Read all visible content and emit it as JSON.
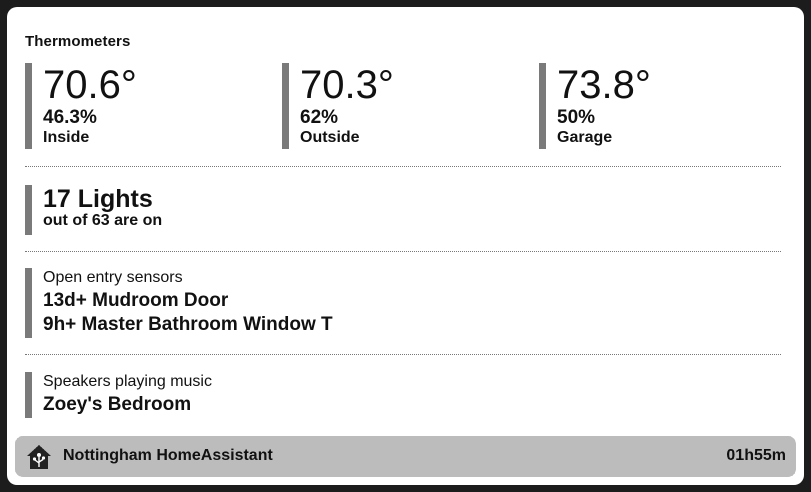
{
  "thermometers": {
    "title": "Thermometers",
    "items": [
      {
        "temperature": "70.6°",
        "humidity": "46.3%",
        "name": "Inside"
      },
      {
        "temperature": "70.3°",
        "humidity": "62%",
        "name": "Outside"
      },
      {
        "temperature": "73.8°",
        "humidity": "50%",
        "name": "Garage"
      }
    ]
  },
  "lights": {
    "count_label": "17 Lights",
    "subtitle": "out of 63 are on"
  },
  "entry_sensors": {
    "label": "Open entry sensors",
    "items": [
      "13d+ Mudroom Door",
      "9h+ Master Bathroom Window T"
    ]
  },
  "speakers": {
    "label": "Speakers playing music",
    "items": [
      "Zoey's Bedroom"
    ]
  },
  "footer": {
    "icon": "home-assistant-logo-icon",
    "name": "Nottingham HomeAssistant",
    "uptime": "01h55m"
  }
}
